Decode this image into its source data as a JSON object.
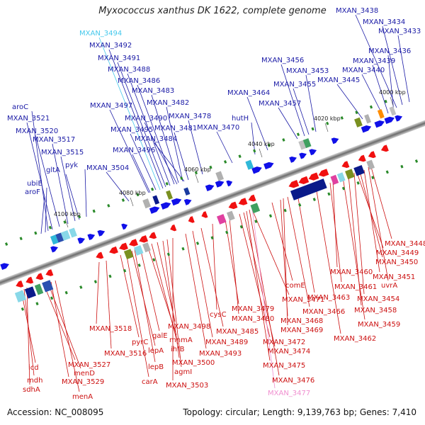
{
  "title": "Myxococcus xanthus DK 1622, complete genome",
  "footer": {
    "accession": "Accession: NC_008095",
    "topology": "Topology: circular; Length: 9,139,763 bp; Genes: 7,410"
  },
  "colors": {
    "forward": "#1010e8",
    "reverse": "#f01010",
    "label_forward": "#1a1aa6",
    "label_reverse": "#cc1010",
    "highlight_forward": "#44c8ec",
    "highlight_reverse": "#f090d0",
    "backbone": "#909090"
  },
  "ticks": [
    "4000 kbp",
    "4020 kbp",
    "4040 kbp",
    "4060 kbp",
    "4080 kbp",
    "4100 kbp"
  ],
  "top_labels": [
    "MXAN_3438",
    "MXAN_3434",
    "MXAN_3433",
    "MXAN_3436",
    "MXAN_3439",
    "MXAN_3440",
    "MXAN_3445",
    "MXAN_3456",
    "MXAN_3453",
    "MXAN_3455",
    "MXAN_3457",
    "MXAN_3464",
    "hutH",
    "MXAN_3470",
    "MXAN_3494",
    "MXAN_3492",
    "MXAN_3491",
    "MXAN_3488",
    "MXAN_3486",
    "MXAN_3483",
    "MXAN_3482",
    "MXAN_3497",
    "MXAN_3490",
    "MXAN_3478",
    "MXAN_3495",
    "MXAN_3481",
    "MXAN_3484",
    "MXAN_3496",
    "MXAN_3504",
    "aroC",
    "MXAN_3521",
    "MXAN_3520",
    "MXAN_3517",
    "MXAN_3515",
    "gltA",
    "pyk",
    "ubiE",
    "aroF"
  ],
  "bottom_labels": [
    "icd",
    "mdh",
    "sdhA",
    "MXAN_3527",
    "menD",
    "MXAN_3529",
    "menA",
    "MXAN_3518",
    "MXAN_3516",
    "pyrC",
    "carA",
    "lepA",
    "lepB",
    "galE",
    "mnmA",
    "ihfB",
    "MXAN_3498",
    "MXAN_3500",
    "agmI",
    "MXAN_3503",
    "MXAN_3493",
    "MXAN_3489",
    "MXAN_3485",
    "cysC",
    "MXAN_3479",
    "MXAN_3480",
    "MXAN_3471",
    "MXAN_3472",
    "MXAN_3474",
    "MXAN_3475",
    "MXAN_3476",
    "MXAN_3477",
    "comE",
    "MXAN_3466",
    "MXAN_3468",
    "MXAN_3469",
    "MXAN_3463",
    "MXAN_3462",
    "MXAN_3460",
    "MXAN_3461",
    "MXAN_3459",
    "MXAN_3458",
    "MXAN_3454",
    "uvrA",
    "MXAN_3451",
    "MXAN_3450",
    "MXAN_3449",
    "MXAN_3448"
  ]
}
